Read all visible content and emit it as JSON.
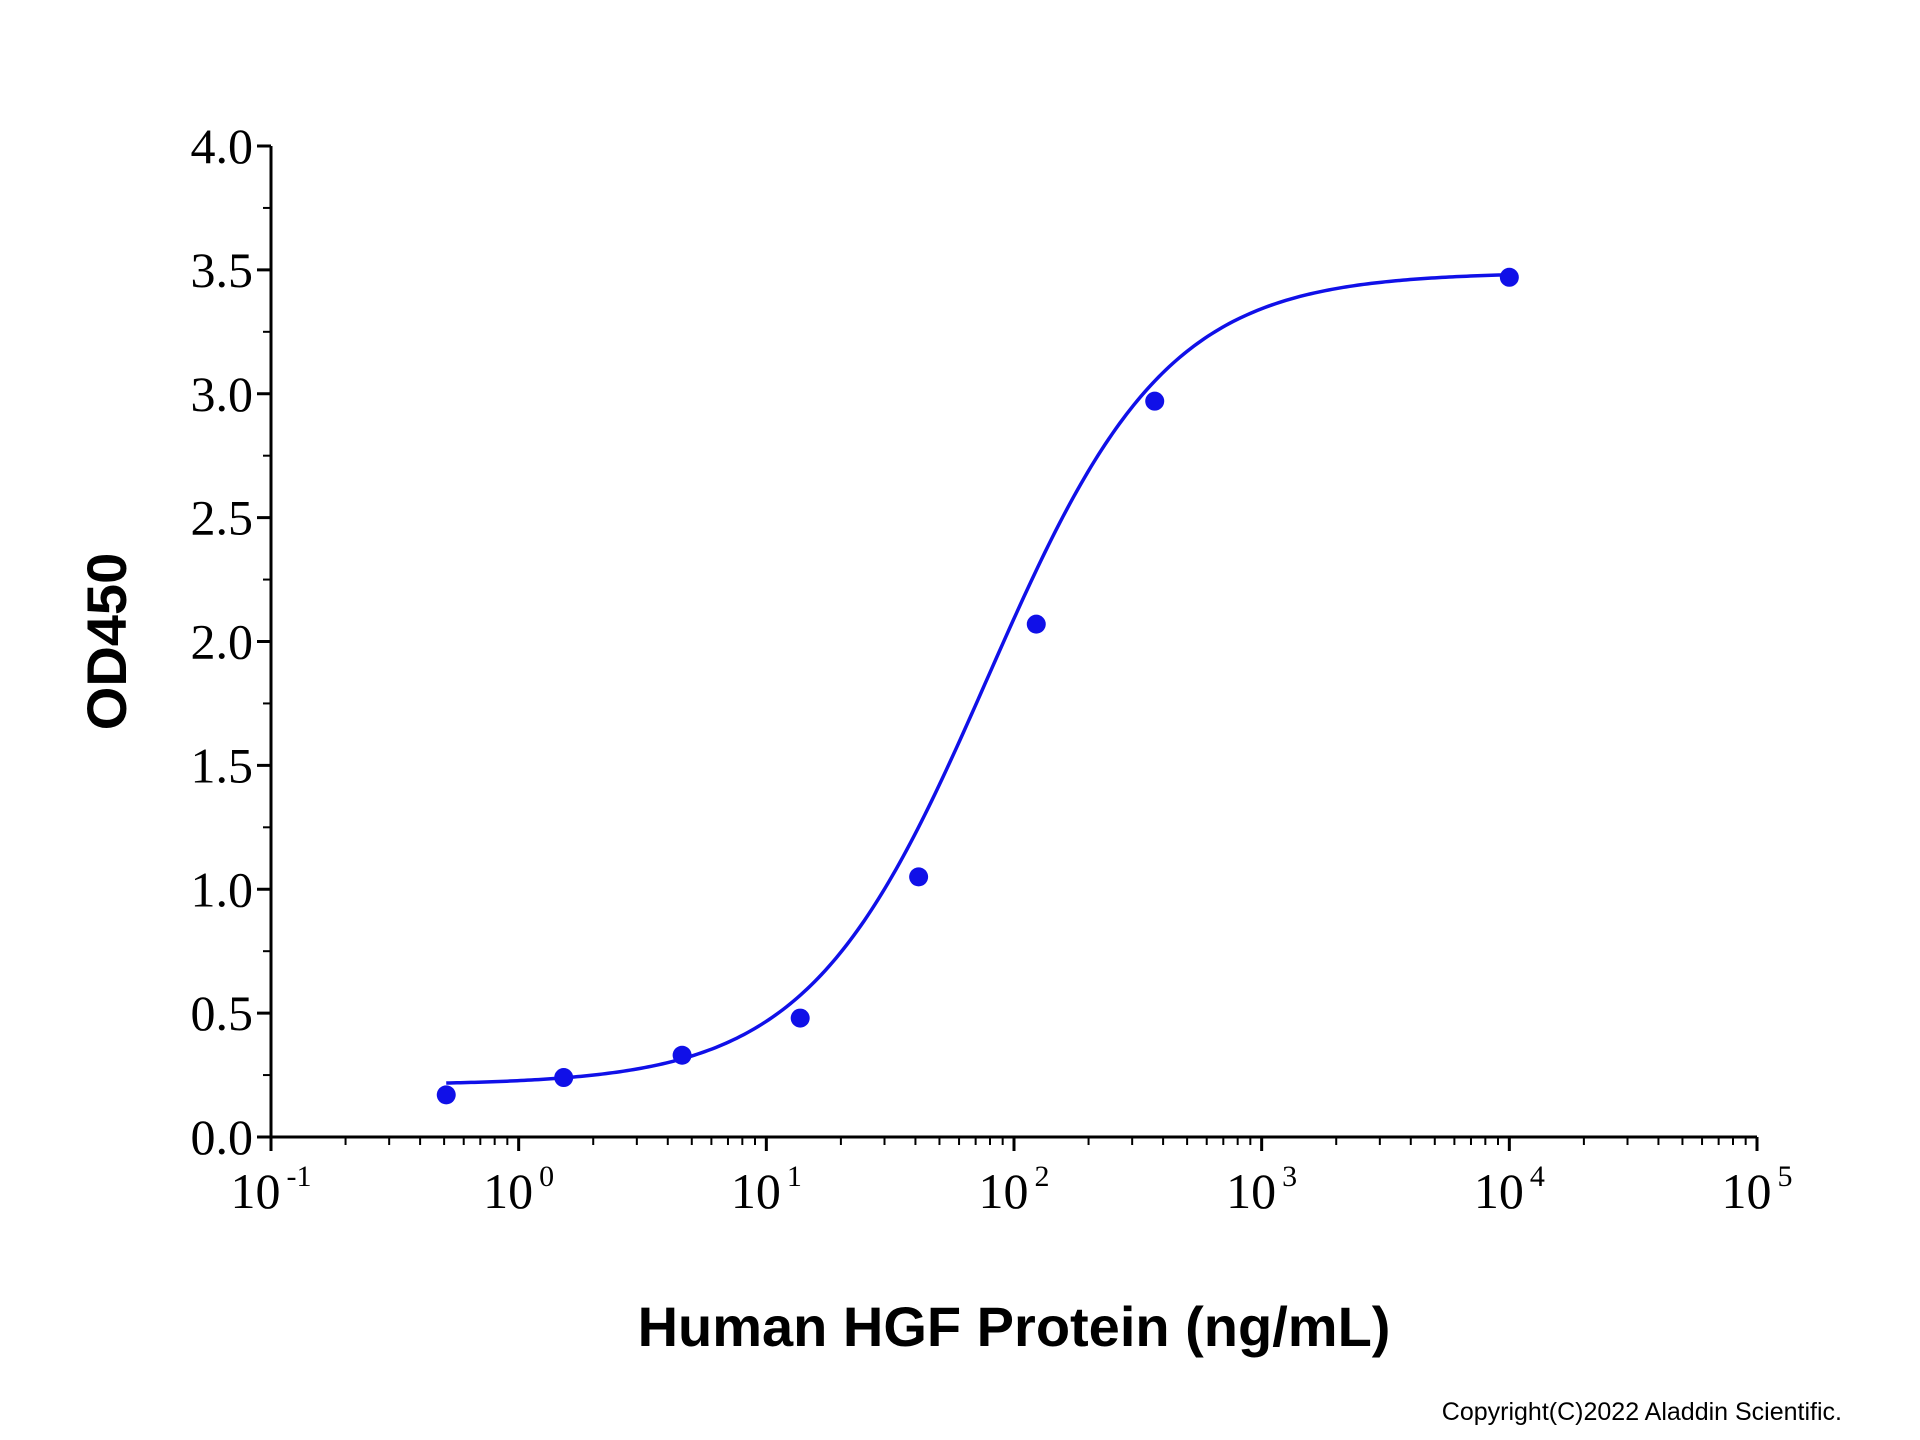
{
  "chart_data": {
    "type": "scatter",
    "x_scale": "log",
    "xlabel": "Human HGF Protein (ng/mL)",
    "ylabel": "OD450",
    "xlim": [
      0.1,
      100000
    ],
    "ylim": [
      0,
      4.0
    ],
    "y_ticks": [
      "0.0",
      "0.5",
      "1.0",
      "1.5",
      "2.0",
      "2.5",
      "3.0",
      "3.5",
      "4.0"
    ],
    "x_ticks": [
      {
        "base": "10",
        "exp": "-1"
      },
      {
        "base": "10",
        "exp": "0"
      },
      {
        "base": "10",
        "exp": "1"
      },
      {
        "base": "10",
        "exp": "2"
      },
      {
        "base": "10",
        "exp": "3"
      },
      {
        "base": "10",
        "exp": "4"
      },
      {
        "base": "10",
        "exp": "5"
      }
    ],
    "grid": false,
    "series": [
      {
        "points": [
          {
            "x": 0.51,
            "y": 0.17
          },
          {
            "x": 1.52,
            "y": 0.24
          },
          {
            "x": 4.57,
            "y": 0.33
          },
          {
            "x": 13.7,
            "y": 0.48
          },
          {
            "x": 41.2,
            "y": 1.05
          },
          {
            "x": 123,
            "y": 2.07
          },
          {
            "x": 370,
            "y": 2.97
          },
          {
            "x": 10000,
            "y": 3.47
          }
        ],
        "fit": {
          "model": "4PL",
          "bottom": 0.21,
          "top": 3.49,
          "ec50": 78,
          "hill": 1.2,
          "x_range": [
            0.51,
            10000
          ]
        }
      }
    ],
    "colors": {
      "series": "#1010e8",
      "axis": "#000000"
    }
  },
  "copyright": "Copyright(C)2022 Aladdin Scientific."
}
